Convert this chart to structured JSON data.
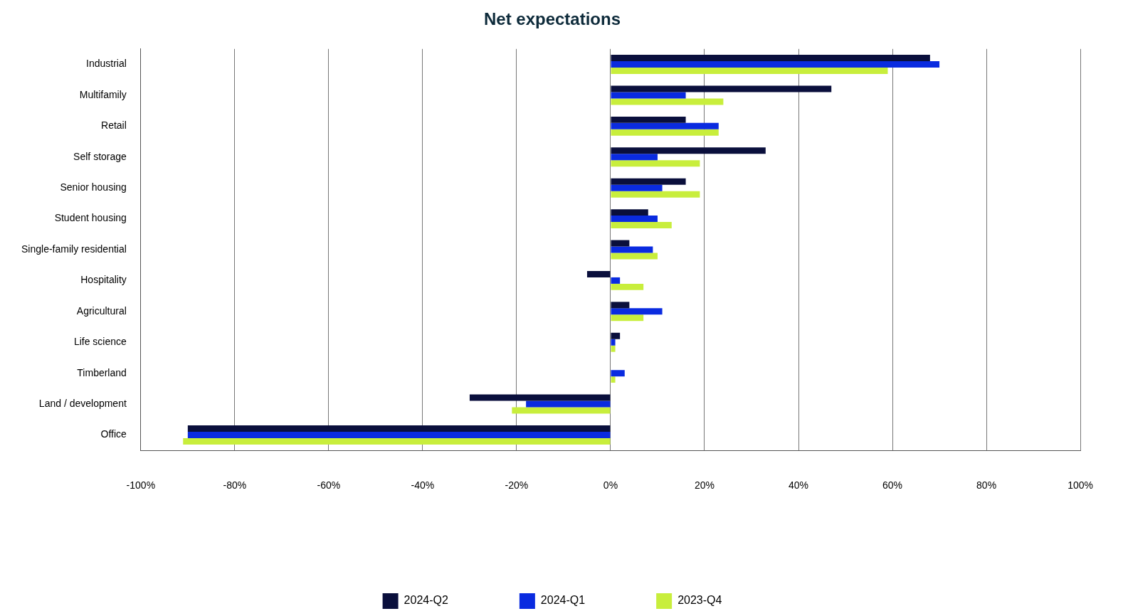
{
  "chart_data": {
    "type": "bar",
    "title": "Net expectations",
    "orientation": "horizontal",
    "categories": [
      "Industrial",
      "Multifamily",
      "Retail",
      "Self storage",
      "Senior housing",
      "Student housing",
      "Single-family residential",
      "Hospitality",
      "Agricultural",
      "Life science",
      "Timberland",
      "Land / development",
      "Office"
    ],
    "series": [
      {
        "name": "2024-Q2",
        "color": "#0a0f3c",
        "values": [
          68,
          47,
          16,
          33,
          16,
          8,
          4,
          -5,
          4,
          2,
          0,
          -30,
          -90
        ]
      },
      {
        "name": "2024-Q1",
        "color": "#0a2be0",
        "values": [
          70,
          16,
          23,
          10,
          11,
          10,
          9,
          2,
          11,
          1,
          3,
          -18,
          -90
        ]
      },
      {
        "name": "2023-Q4",
        "color": "#c8ee3c",
        "values": [
          59,
          24,
          23,
          19,
          19,
          13,
          10,
          7,
          7,
          1,
          1,
          -21,
          -91
        ]
      }
    ],
    "xlim": [
      -100,
      100
    ],
    "xticks": [
      {
        "value": -100,
        "label": "-100%"
      },
      {
        "value": -80,
        "label": "-80%"
      },
      {
        "value": -60,
        "label": "-60%"
      },
      {
        "value": -40,
        "label": "-40%"
      },
      {
        "value": -20,
        "label": "-20%"
      },
      {
        "value": 0,
        "label": "0%"
      },
      {
        "value": 20,
        "label": "20%"
      },
      {
        "value": 40,
        "label": "40%"
      },
      {
        "value": 60,
        "label": "60%"
      },
      {
        "value": 80,
        "label": "80%"
      },
      {
        "value": 100,
        "label": "100%"
      }
    ],
    "grid": "x",
    "legend": "bottom"
  }
}
